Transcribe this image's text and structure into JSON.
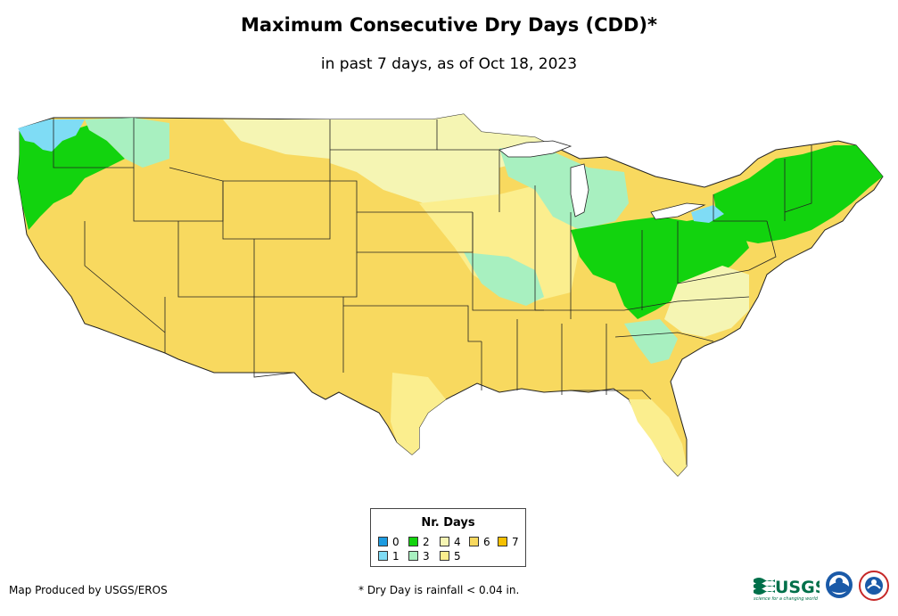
{
  "title": "Maximum Consecutive Dry Days (CDD)*",
  "subtitle": "in past 7 days, as of Oct 18, 2023",
  "legend": {
    "title": "Nr. Days",
    "items": [
      {
        "label": "0",
        "color": "#1d9be0"
      },
      {
        "label": "1",
        "color": "#7fdcf5"
      },
      {
        "label": "2",
        "color": "#12d30e"
      },
      {
        "label": "3",
        "color": "#a8f0c0"
      },
      {
        "label": "4",
        "color": "#f5f5b3"
      },
      {
        "label": "5",
        "color": "#fbee8e"
      },
      {
        "label": "6",
        "color": "#f8d95f"
      },
      {
        "label": "7",
        "color": "#f5c000"
      }
    ]
  },
  "credit": "Map Produced by USGS/EROS",
  "footnote": "* Dry Day is rainfall < 0.04 in.",
  "logos": {
    "usgs": "USGS",
    "usgs_tagline": "science for a changing world"
  },
  "map": {
    "ocean_color": "#ffffff",
    "border_color": "#222222"
  }
}
